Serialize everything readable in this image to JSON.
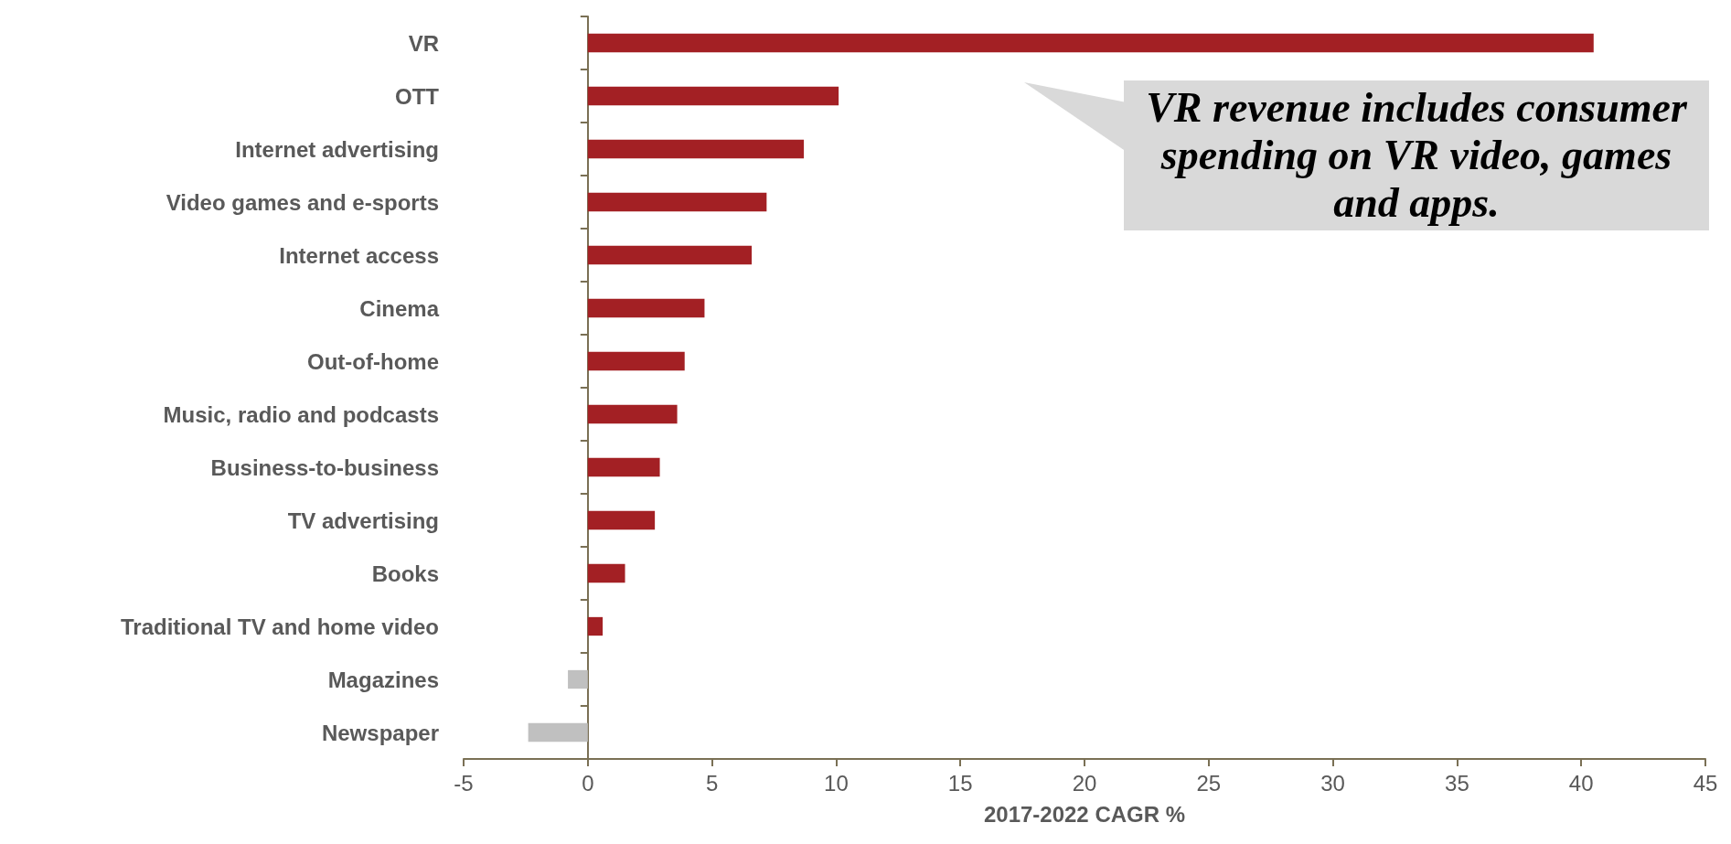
{
  "chart_data": {
    "type": "bar",
    "orientation": "horizontal",
    "xlabel": "2017-2022 CAGR %",
    "categories": [
      "VR",
      "OTT",
      "Internet advertising",
      "Video games and e-sports",
      "Internet access",
      "Cinema",
      "Out-of-home",
      "Music, radio and podcasts",
      "Business-to-business",
      "TV advertising",
      "Books",
      "Traditional TV and home video",
      "Magazines",
      "Newspaper"
    ],
    "values": [
      40.5,
      10.1,
      8.7,
      7.2,
      6.6,
      4.7,
      3.9,
      3.6,
      2.9,
      2.7,
      1.5,
      0.6,
      -0.8,
      -2.4
    ],
    "colors": [
      "#a32024",
      "#a32024",
      "#a32024",
      "#a32024",
      "#a32024",
      "#a32024",
      "#a32024",
      "#a32024",
      "#a32024",
      "#a32024",
      "#a32024",
      "#a32024",
      "#c0c0c0",
      "#c0c0c0"
    ],
    "xlim": [
      -5,
      45
    ],
    "xticks": [
      -5,
      0,
      5,
      10,
      15,
      20,
      25,
      30,
      35,
      40,
      45
    ],
    "annotations": [
      "VR revenue includes consumer spending on VR video, games and apps."
    ]
  }
}
